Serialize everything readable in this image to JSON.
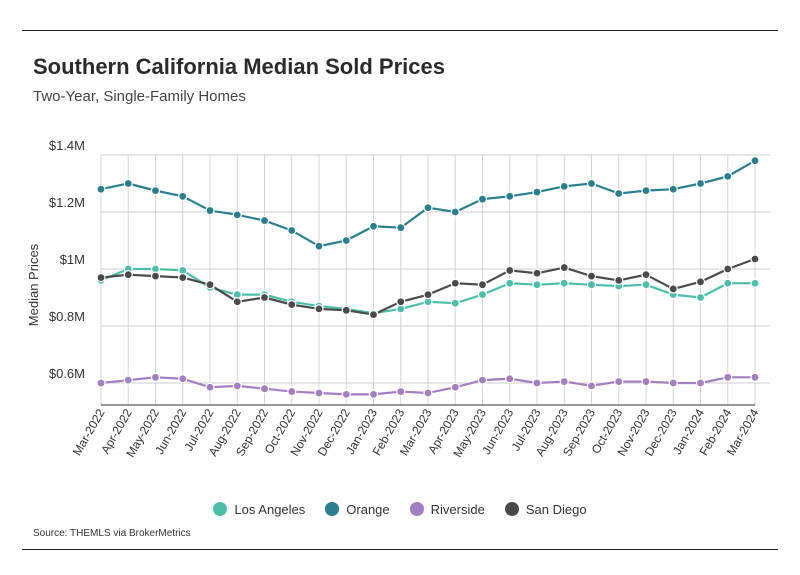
{
  "header": {
    "title": "Southern California Median Sold Prices",
    "subtitle": "Two-Year, Single-Family Homes"
  },
  "footer": {
    "source": "Source:  THEMLS via BrokerMetrics"
  },
  "chart_data": {
    "type": "line",
    "title": "Southern California Median Sold Prices",
    "subtitle": "Two-Year, Single-Family Homes",
    "xlabel": "",
    "ylabel": "Median Prices",
    "ylim": [
      540000,
      1420000
    ],
    "y_ticks": [
      600000,
      800000,
      1000000,
      1200000,
      1400000
    ],
    "y_tick_labels": [
      "$0.6M",
      "$0.8M",
      "$1M",
      "$1.2M",
      "$1.4M"
    ],
    "grid": "on",
    "legend_position": "bottom",
    "categories": [
      "Mar-2022",
      "Apr-2022",
      "May-2022",
      "Jun-2022",
      "Jul-2022",
      "Aug-2022",
      "Sep-2022",
      "Oct-2022",
      "Nov-2022",
      "Dec-2022",
      "Jan-2023",
      "Feb-2023",
      "Mar-2023",
      "Apr-2023",
      "May-2023",
      "Jun-2023",
      "Jul-2023",
      "Aug-2023",
      "Sep-2023",
      "Oct-2023",
      "Nov-2023",
      "Dec-2023",
      "Jan-2024",
      "Feb-2024",
      "Mar-2024"
    ],
    "series": [
      {
        "name": "Los Angeles",
        "color": "#4dbfa8",
        "values": [
          960000,
          1000000,
          1000000,
          995000,
          935000,
          910000,
          910000,
          885000,
          870000,
          860000,
          845000,
          860000,
          885000,
          880000,
          910000,
          950000,
          945000,
          950000,
          945000,
          940000,
          945000,
          910000,
          900000,
          950000,
          950000
        ]
      },
      {
        "name": "Orange",
        "color": "#2b7f8c",
        "values": [
          1280000,
          1300000,
          1275000,
          1255000,
          1205000,
          1190000,
          1170000,
          1135000,
          1080000,
          1100000,
          1150000,
          1145000,
          1215000,
          1200000,
          1245000,
          1255000,
          1270000,
          1290000,
          1300000,
          1265000,
          1275000,
          1280000,
          1300000,
          1325000,
          1380000
        ]
      },
      {
        "name": "Riverside",
        "color": "#a17fc1",
        "values": [
          600000,
          610000,
          620000,
          615000,
          585000,
          590000,
          580000,
          570000,
          565000,
          560000,
          560000,
          570000,
          565000,
          585000,
          610000,
          615000,
          600000,
          605000,
          590000,
          605000,
          605000,
          600000,
          600000,
          620000,
          620000
        ]
      },
      {
        "name": "San Diego",
        "color": "#4a4a4a",
        "values": [
          970000,
          980000,
          975000,
          970000,
          945000,
          885000,
          900000,
          875000,
          860000,
          855000,
          840000,
          885000,
          910000,
          950000,
          945000,
          995000,
          985000,
          1005000,
          975000,
          960000,
          980000,
          930000,
          955000,
          1000000,
          1035000
        ]
      }
    ]
  }
}
